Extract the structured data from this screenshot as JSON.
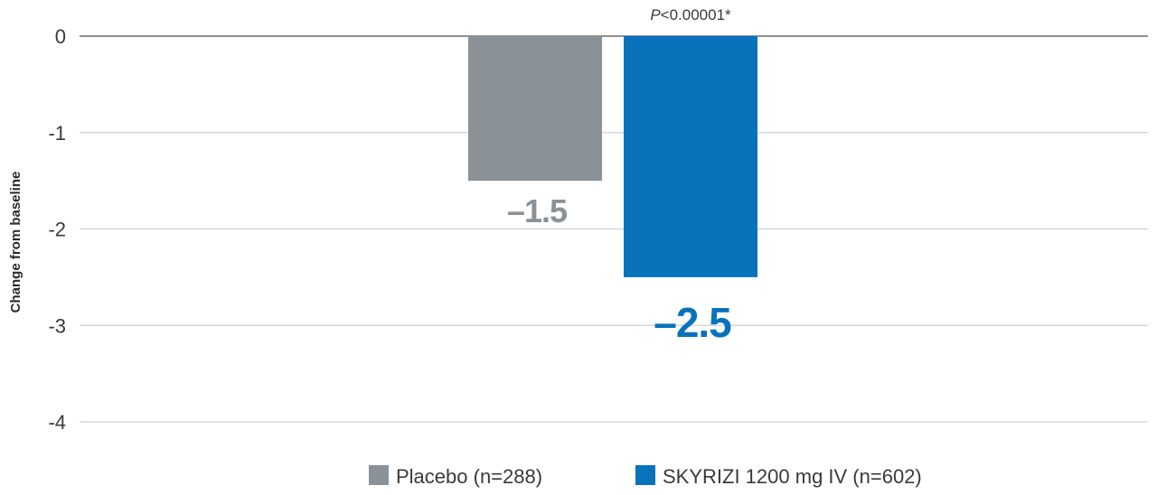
{
  "chart_data": {
    "type": "bar",
    "title": "",
    "xlabel": "",
    "ylabel": "Change from baseline",
    "ylim": [
      -4,
      0
    ],
    "yticks": [
      "0",
      "-1",
      "-2",
      "-3",
      "-4"
    ],
    "grid": true,
    "legend_position": "bottom",
    "series": [
      {
        "name": "Placebo (n=288)",
        "value": -1.5,
        "label": "–1.5",
        "color": "#8a9298"
      },
      {
        "name": "SKYRIZI 1200 mg IV (n=602)",
        "value": -2.5,
        "label": "–2.5",
        "color": "#0872bb"
      }
    ],
    "annotation": {
      "p_symbol": "P",
      "p_rest": "<0.00001*"
    }
  }
}
